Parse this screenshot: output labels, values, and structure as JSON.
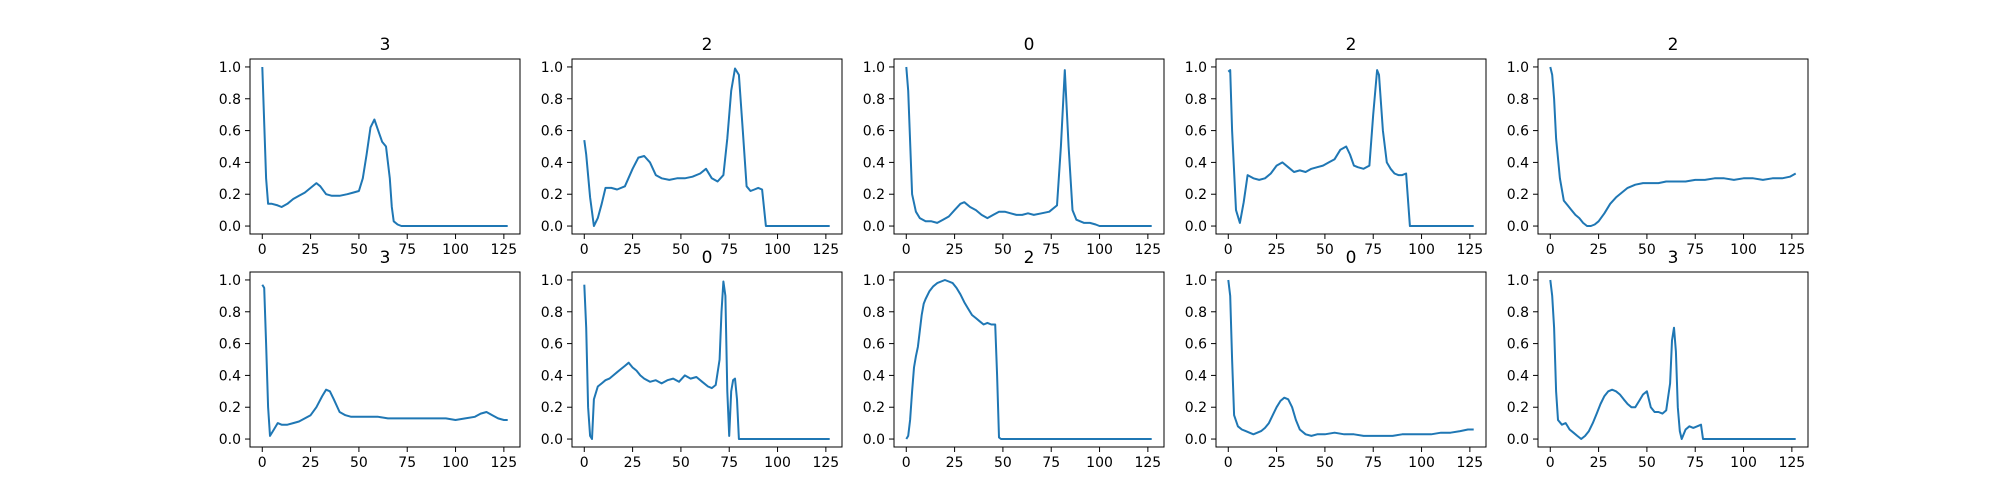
{
  "figure": {
    "line_color": "#1f77b4",
    "background": "#ffffff"
  },
  "chart_data": [
    {
      "type": "line",
      "title": "3",
      "xlabel": "",
      "ylabel": "",
      "xlim": [
        -6.35,
        133.35
      ],
      "ylim": [
        -0.05,
        1.05
      ],
      "xticks": [
        0,
        25,
        50,
        75,
        100,
        125
      ],
      "yticks": [
        0.0,
        0.2,
        0.4,
        0.6,
        0.8,
        1.0
      ],
      "grid": false,
      "series": [
        {
          "x": [
            0,
            2,
            3,
            5,
            8,
            10,
            13,
            16,
            19,
            22,
            25,
            28,
            30,
            33,
            36,
            40,
            44,
            47,
            50,
            52,
            54,
            56,
            58,
            60,
            62,
            64,
            66,
            67,
            68,
            70,
            72,
            75,
            80,
            90,
            100,
            110,
            120,
            127
          ],
          "y": [
            1.0,
            0.3,
            0.14,
            0.14,
            0.13,
            0.12,
            0.14,
            0.17,
            0.19,
            0.21,
            0.24,
            0.27,
            0.25,
            0.2,
            0.19,
            0.19,
            0.2,
            0.21,
            0.22,
            0.3,
            0.45,
            0.62,
            0.67,
            0.6,
            0.53,
            0.5,
            0.3,
            0.12,
            0.03,
            0.01,
            0.0,
            0.0,
            0.0,
            0.0,
            0.0,
            0.0,
            0.0,
            0.0
          ]
        }
      ]
    },
    {
      "type": "line",
      "title": "2",
      "xlabel": "",
      "ylabel": "",
      "xlim": [
        -6.35,
        133.35
      ],
      "ylim": [
        -0.05,
        1.05
      ],
      "xticks": [
        0,
        25,
        50,
        75,
        100,
        125
      ],
      "yticks": [
        0.0,
        0.2,
        0.4,
        0.6,
        0.8,
        1.0
      ],
      "grid": false,
      "series": [
        {
          "x": [
            0,
            1,
            3,
            5,
            7,
            9,
            11,
            14,
            17,
            21,
            25,
            28,
            31,
            34,
            37,
            40,
            44,
            48,
            52,
            56,
            60,
            63,
            66,
            69,
            72,
            74,
            76,
            78,
            80,
            82,
            84,
            86,
            88,
            90,
            92,
            94,
            96,
            100,
            110,
            120,
            127
          ],
          "y": [
            0.54,
            0.45,
            0.18,
            0.0,
            0.05,
            0.14,
            0.24,
            0.24,
            0.23,
            0.25,
            0.36,
            0.43,
            0.44,
            0.4,
            0.32,
            0.3,
            0.29,
            0.3,
            0.3,
            0.31,
            0.33,
            0.36,
            0.3,
            0.28,
            0.32,
            0.55,
            0.85,
            0.99,
            0.95,
            0.6,
            0.25,
            0.22,
            0.23,
            0.24,
            0.23,
            0.0,
            0.0,
            0.0,
            0.0,
            0.0,
            0.0
          ]
        }
      ]
    },
    {
      "type": "line",
      "title": "0",
      "xlabel": "",
      "ylabel": "",
      "xlim": [
        -6.35,
        133.35
      ],
      "ylim": [
        -0.05,
        1.05
      ],
      "xticks": [
        0,
        25,
        50,
        75,
        100,
        125
      ],
      "yticks": [
        0.0,
        0.2,
        0.4,
        0.6,
        0.8,
        1.0
      ],
      "grid": false,
      "series": [
        {
          "x": [
            0,
            1,
            3,
            5,
            7,
            10,
            13,
            16,
            19,
            22,
            25,
            28,
            30,
            33,
            36,
            39,
            42,
            45,
            48,
            51,
            54,
            57,
            60,
            63,
            66,
            70,
            74,
            78,
            80,
            82,
            84,
            86,
            88,
            90,
            92,
            95,
            98,
            100,
            110,
            120,
            127
          ],
          "y": [
            1.0,
            0.85,
            0.2,
            0.09,
            0.05,
            0.03,
            0.03,
            0.02,
            0.04,
            0.06,
            0.1,
            0.14,
            0.15,
            0.12,
            0.1,
            0.07,
            0.05,
            0.07,
            0.09,
            0.09,
            0.08,
            0.07,
            0.07,
            0.08,
            0.07,
            0.08,
            0.09,
            0.13,
            0.5,
            0.98,
            0.5,
            0.1,
            0.04,
            0.03,
            0.02,
            0.02,
            0.01,
            0.0,
            0.0,
            0.0,
            0.0
          ]
        }
      ]
    },
    {
      "type": "line",
      "title": "2",
      "xlabel": "",
      "ylabel": "",
      "xlim": [
        -6.35,
        133.35
      ],
      "ylim": [
        -0.05,
        1.05
      ],
      "xticks": [
        0,
        25,
        50,
        75,
        100,
        125
      ],
      "yticks": [
        0.0,
        0.2,
        0.4,
        0.6,
        0.8,
        1.0
      ],
      "grid": false,
      "series": [
        {
          "x": [
            0,
            1,
            2,
            4,
            6,
            8,
            10,
            13,
            16,
            19,
            22,
            25,
            28,
            31,
            34,
            37,
            40,
            43,
            46,
            49,
            52,
            55,
            58,
            61,
            63,
            65,
            67,
            70,
            73,
            75,
            77,
            78,
            80,
            82,
            84,
            86,
            88,
            90,
            92,
            94,
            96,
            100,
            110,
            120,
            127
          ],
          "y": [
            0.97,
            0.98,
            0.6,
            0.1,
            0.02,
            0.15,
            0.32,
            0.3,
            0.29,
            0.3,
            0.33,
            0.38,
            0.4,
            0.37,
            0.34,
            0.35,
            0.34,
            0.36,
            0.37,
            0.38,
            0.4,
            0.42,
            0.48,
            0.5,
            0.45,
            0.38,
            0.37,
            0.36,
            0.38,
            0.7,
            0.98,
            0.95,
            0.6,
            0.4,
            0.36,
            0.33,
            0.32,
            0.32,
            0.33,
            0.0,
            0.0,
            0.0,
            0.0,
            0.0,
            0.0
          ]
        }
      ]
    },
    {
      "type": "line",
      "title": "2",
      "xlabel": "",
      "ylabel": "",
      "xlim": [
        -6.35,
        133.35
      ],
      "ylim": [
        -0.05,
        1.05
      ],
      "xticks": [
        0,
        25,
        50,
        75,
        100,
        125
      ],
      "yticks": [
        0.0,
        0.2,
        0.4,
        0.6,
        0.8,
        1.0
      ],
      "grid": false,
      "series": [
        {
          "x": [
            0,
            1,
            2,
            3,
            5,
            7,
            9,
            11,
            13,
            15,
            17,
            19,
            21,
            23,
            25,
            28,
            31,
            34,
            37,
            40,
            44,
            48,
            52,
            56,
            60,
            65,
            70,
            75,
            80,
            85,
            90,
            95,
            100,
            105,
            110,
            115,
            120,
            124,
            127
          ],
          "y": [
            1.0,
            0.95,
            0.8,
            0.55,
            0.3,
            0.16,
            0.13,
            0.1,
            0.07,
            0.05,
            0.02,
            0.0,
            0.0,
            0.01,
            0.03,
            0.08,
            0.14,
            0.18,
            0.21,
            0.24,
            0.26,
            0.27,
            0.27,
            0.27,
            0.28,
            0.28,
            0.28,
            0.29,
            0.29,
            0.3,
            0.3,
            0.29,
            0.3,
            0.3,
            0.29,
            0.3,
            0.3,
            0.31,
            0.33
          ]
        }
      ]
    },
    {
      "type": "line",
      "title": "3",
      "xlabel": "",
      "ylabel": "",
      "xlim": [
        -6.35,
        133.35
      ],
      "ylim": [
        -0.05,
        1.05
      ],
      "xticks": [
        0,
        25,
        50,
        75,
        100,
        125
      ],
      "yticks": [
        0.0,
        0.2,
        0.4,
        0.6,
        0.8,
        1.0
      ],
      "grid": false,
      "series": [
        {
          "x": [
            0,
            1,
            2,
            3,
            4,
            6,
            8,
            10,
            13,
            16,
            19,
            22,
            25,
            28,
            31,
            33,
            35,
            37,
            40,
            43,
            46,
            50,
            55,
            60,
            65,
            70,
            75,
            80,
            85,
            90,
            95,
            100,
            105,
            110,
            113,
            116,
            119,
            122,
            125,
            127
          ],
          "y": [
            0.97,
            0.95,
            0.6,
            0.2,
            0.02,
            0.06,
            0.1,
            0.09,
            0.09,
            0.1,
            0.11,
            0.13,
            0.15,
            0.2,
            0.27,
            0.31,
            0.3,
            0.25,
            0.17,
            0.15,
            0.14,
            0.14,
            0.14,
            0.14,
            0.13,
            0.13,
            0.13,
            0.13,
            0.13,
            0.13,
            0.13,
            0.12,
            0.13,
            0.14,
            0.16,
            0.17,
            0.15,
            0.13,
            0.12,
            0.12
          ]
        }
      ]
    },
    {
      "type": "line",
      "title": "0",
      "xlabel": "",
      "ylabel": "",
      "xlim": [
        -6.35,
        133.35
      ],
      "ylim": [
        -0.05,
        1.05
      ],
      "xticks": [
        0,
        25,
        50,
        75,
        100,
        125
      ],
      "yticks": [
        0.0,
        0.2,
        0.4,
        0.6,
        0.8,
        1.0
      ],
      "grid": false,
      "series": [
        {
          "x": [
            0,
            1,
            2,
            3,
            4,
            5,
            7,
            9,
            11,
            13,
            15,
            17,
            19,
            21,
            23,
            25,
            27,
            29,
            31,
            34,
            37,
            40,
            43,
            46,
            49,
            52,
            55,
            58,
            61,
            64,
            66,
            68,
            70,
            71,
            72,
            73,
            74,
            75,
            76,
            77,
            78,
            79,
            80,
            82,
            85,
            90,
            100,
            110,
            120,
            127
          ],
          "y": [
            0.97,
            0.7,
            0.2,
            0.02,
            0.0,
            0.25,
            0.33,
            0.35,
            0.37,
            0.38,
            0.4,
            0.42,
            0.44,
            0.46,
            0.48,
            0.45,
            0.43,
            0.4,
            0.38,
            0.36,
            0.37,
            0.35,
            0.37,
            0.38,
            0.36,
            0.4,
            0.38,
            0.39,
            0.36,
            0.33,
            0.32,
            0.34,
            0.5,
            0.8,
            0.99,
            0.9,
            0.3,
            0.02,
            0.3,
            0.37,
            0.38,
            0.25,
            0.0,
            0.0,
            0.0,
            0.0,
            0.0,
            0.0,
            0.0,
            0.0
          ]
        }
      ]
    },
    {
      "type": "line",
      "title": "2",
      "xlabel": "",
      "ylabel": "",
      "xlim": [
        -6.35,
        133.35
      ],
      "ylim": [
        -0.05,
        1.05
      ],
      "xticks": [
        0,
        25,
        50,
        75,
        100,
        125
      ],
      "yticks": [
        0.0,
        0.2,
        0.4,
        0.6,
        0.8,
        1.0
      ],
      "grid": false,
      "series": [
        {
          "x": [
            0,
            1,
            2,
            3,
            4,
            5,
            6,
            7,
            8,
            9,
            10,
            12,
            14,
            16,
            18,
            20,
            22,
            24,
            26,
            28,
            30,
            32,
            34,
            36,
            38,
            40,
            42,
            44,
            46,
            47,
            48,
            49,
            50,
            55,
            60,
            70,
            80,
            90,
            100,
            110,
            120,
            127
          ],
          "y": [
            0.0,
            0.02,
            0.12,
            0.3,
            0.45,
            0.52,
            0.58,
            0.68,
            0.78,
            0.85,
            0.88,
            0.93,
            0.96,
            0.98,
            0.99,
            1.0,
            0.99,
            0.98,
            0.95,
            0.91,
            0.86,
            0.82,
            0.78,
            0.76,
            0.74,
            0.72,
            0.73,
            0.72,
            0.72,
            0.4,
            0.01,
            0.0,
            0.0,
            0.0,
            0.0,
            0.0,
            0.0,
            0.0,
            0.0,
            0.0,
            0.0,
            0.0
          ]
        }
      ]
    },
    {
      "type": "line",
      "title": "0",
      "xlabel": "",
      "ylabel": "",
      "xlim": [
        -6.35,
        133.35
      ],
      "ylim": [
        -0.05,
        1.05
      ],
      "xticks": [
        0,
        25,
        50,
        75,
        100,
        125
      ],
      "yticks": [
        0.0,
        0.2,
        0.4,
        0.6,
        0.8,
        1.0
      ],
      "grid": false,
      "series": [
        {
          "x": [
            0,
            1,
            2,
            3,
            5,
            7,
            9,
            11,
            13,
            15,
            17,
            19,
            21,
            23,
            25,
            27,
            29,
            31,
            33,
            35,
            37,
            40,
            43,
            46,
            50,
            55,
            60,
            65,
            70,
            75,
            80,
            85,
            90,
            95,
            100,
            105,
            110,
            115,
            120,
            124,
            127
          ],
          "y": [
            1.0,
            0.9,
            0.5,
            0.15,
            0.08,
            0.06,
            0.05,
            0.04,
            0.03,
            0.04,
            0.05,
            0.07,
            0.1,
            0.15,
            0.2,
            0.24,
            0.26,
            0.25,
            0.2,
            0.12,
            0.06,
            0.03,
            0.02,
            0.03,
            0.03,
            0.04,
            0.03,
            0.03,
            0.02,
            0.02,
            0.02,
            0.02,
            0.03,
            0.03,
            0.03,
            0.03,
            0.04,
            0.04,
            0.05,
            0.06,
            0.06
          ]
        }
      ]
    },
    {
      "type": "line",
      "title": "3",
      "xlabel": "",
      "ylabel": "",
      "xlim": [
        -6.35,
        133.35
      ],
      "ylim": [
        -0.05,
        1.05
      ],
      "xticks": [
        0,
        25,
        50,
        75,
        100,
        125
      ],
      "yticks": [
        0.0,
        0.2,
        0.4,
        0.6,
        0.8,
        1.0
      ],
      "grid": false,
      "series": [
        {
          "x": [
            0,
            1,
            2,
            3,
            4,
            6,
            8,
            10,
            12,
            14,
            16,
            18,
            20,
            22,
            24,
            26,
            28,
            30,
            32,
            34,
            36,
            38,
            40,
            42,
            44,
            46,
            48,
            50,
            52,
            54,
            56,
            58,
            60,
            62,
            63,
            64,
            65,
            66,
            67,
            68,
            70,
            72,
            74,
            76,
            78,
            79,
            80,
            85,
            90,
            100,
            110,
            120,
            127
          ],
          "y": [
            1.0,
            0.9,
            0.7,
            0.3,
            0.12,
            0.09,
            0.1,
            0.06,
            0.04,
            0.02,
            0.0,
            0.02,
            0.05,
            0.1,
            0.16,
            0.22,
            0.27,
            0.3,
            0.31,
            0.3,
            0.28,
            0.25,
            0.22,
            0.2,
            0.2,
            0.24,
            0.28,
            0.3,
            0.2,
            0.17,
            0.17,
            0.16,
            0.18,
            0.35,
            0.62,
            0.7,
            0.55,
            0.2,
            0.05,
            0.0,
            0.06,
            0.08,
            0.07,
            0.08,
            0.09,
            0.0,
            0.0,
            0.0,
            0.0,
            0.0,
            0.0,
            0.0,
            0.0
          ]
        }
      ]
    }
  ]
}
